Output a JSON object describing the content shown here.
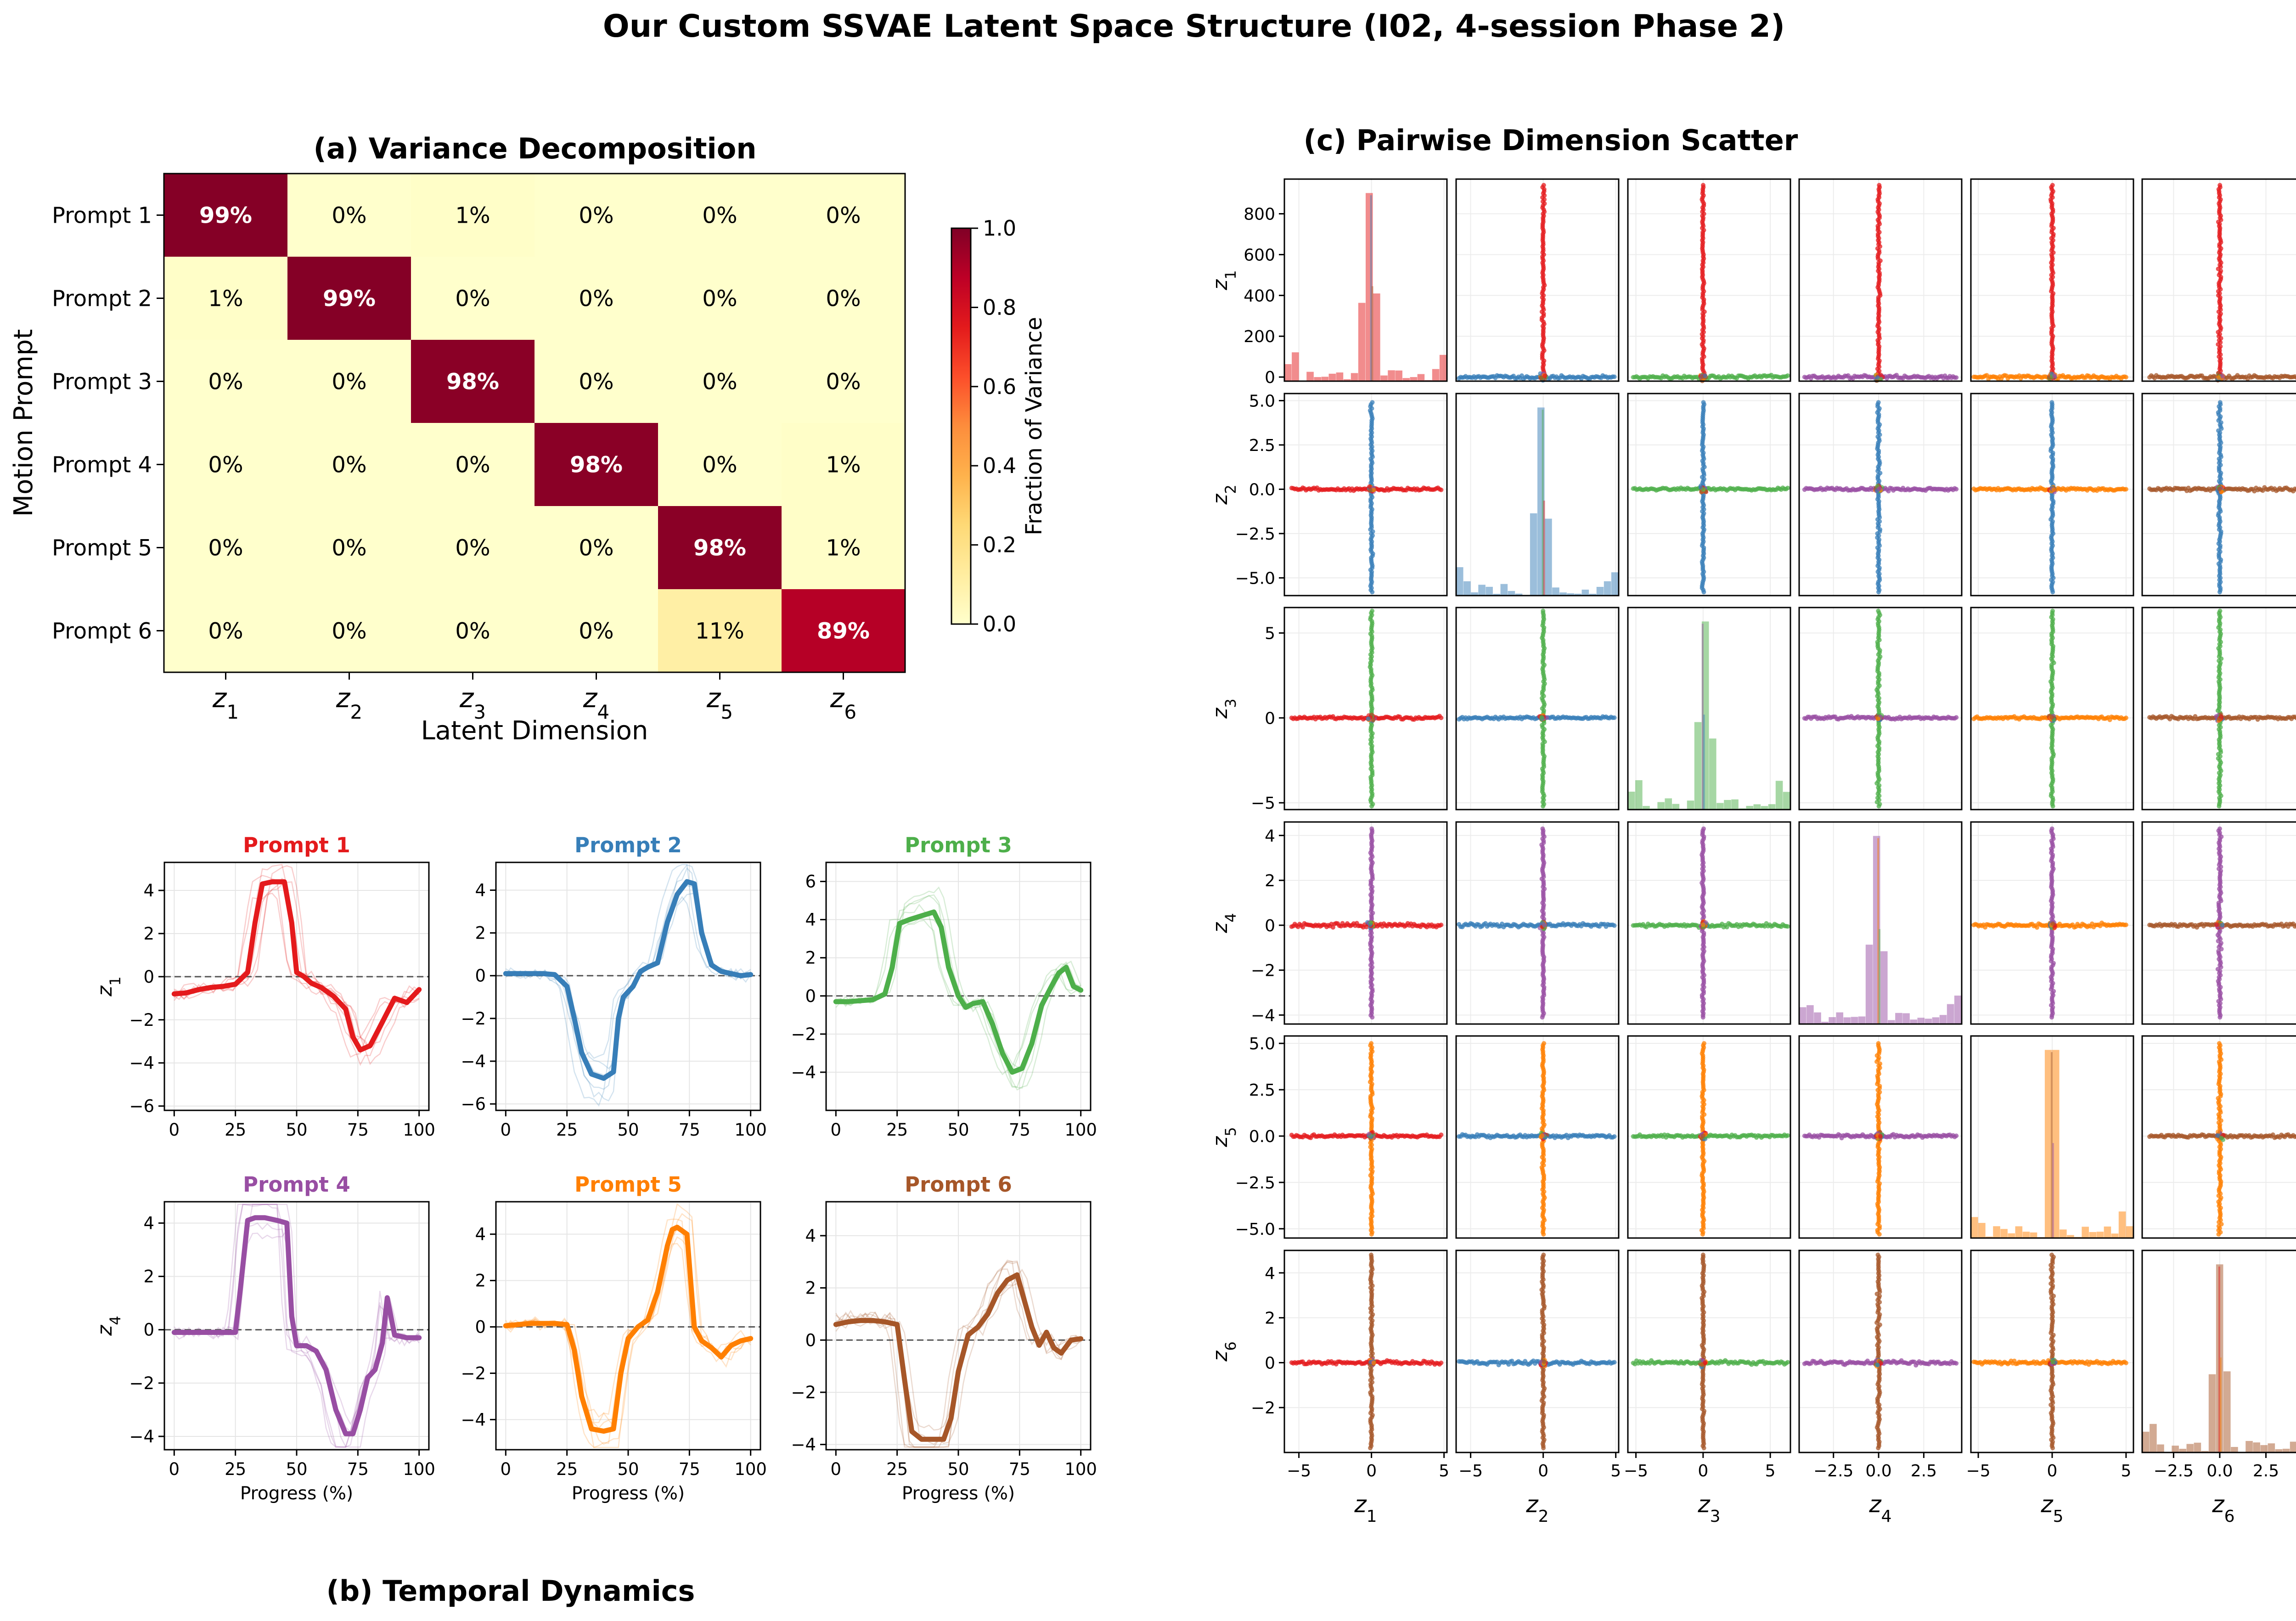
{
  "figure": {
    "title": "Our Custom SSVAE Latent Space Structure (I02, 4-session Phase 2)",
    "colors": [
      "#e41a1c",
      "#377eb8",
      "#4daf4a",
      "#984ea3",
      "#ff7f00",
      "#a65628"
    ]
  },
  "chart_data": [
    {
      "type": "heatmap",
      "title": "(a) Variance Decomposition",
      "xlabel": "Latent Dimension",
      "ylabel": "Motion Prompt",
      "row_labels": [
        "Prompt 1",
        "Prompt 2",
        "Prompt 3",
        "Prompt 4",
        "Prompt 5",
        "Prompt 6"
      ],
      "col_labels": [
        "z1",
        "z2",
        "z3",
        "z4",
        "z5",
        "z6"
      ],
      "values": [
        [
          0.99,
          0.0,
          0.01,
          0.0,
          0.0,
          0.0
        ],
        [
          0.01,
          0.99,
          0.0,
          0.0,
          0.0,
          0.0
        ],
        [
          0.0,
          0.0,
          0.98,
          0.0,
          0.0,
          0.0
        ],
        [
          0.0,
          0.0,
          0.0,
          0.98,
          0.0,
          0.01
        ],
        [
          0.0,
          0.0,
          0.0,
          0.0,
          0.98,
          0.01
        ],
        [
          0.0,
          0.0,
          0.0,
          0.0,
          0.11,
          0.89
        ]
      ],
      "cell_labels": [
        [
          "99%",
          "0%",
          "1%",
          "0%",
          "0%",
          "0%"
        ],
        [
          "1%",
          "99%",
          "0%",
          "0%",
          "0%",
          "0%"
        ],
        [
          "0%",
          "0%",
          "98%",
          "0%",
          "0%",
          "0%"
        ],
        [
          "0%",
          "0%",
          "0%",
          "98%",
          "0%",
          "1%"
        ],
        [
          "0%",
          "0%",
          "0%",
          "0%",
          "98%",
          "1%"
        ],
        [
          "0%",
          "0%",
          "0%",
          "0%",
          "11%",
          "89%"
        ]
      ],
      "colorbar": {
        "label": "Fraction of Variance",
        "range": [
          0,
          1
        ],
        "ticks": [
          "0.0",
          "0.2",
          "0.4",
          "0.6",
          "0.8",
          "1.0"
        ],
        "colormap": "YlOrRd"
      }
    },
    {
      "type": "line",
      "title": "(b) Temporal Dynamics",
      "xlabel": "Progress (%)",
      "panels": [
        {
          "name": "Prompt 1",
          "ylabel": "z1",
          "color": "#e41a1c",
          "ylim": [
            -6.2,
            5.3
          ],
          "yticks": [
            "4",
            "2",
            "0",
            "−2",
            "−4",
            "−6"
          ],
          "yticks_values": [
            4,
            2,
            0,
            -2,
            -4,
            -6
          ],
          "xticks": [
            "0",
            "25",
            "50",
            "75",
            "100"
          ],
          "mean": {
            "x": [
              0,
              5,
              10,
              15,
              20,
              25,
              30,
              33,
              36,
              40,
              45,
              48,
              50,
              53,
              56,
              60,
              65,
              70,
              73,
              76,
              80,
              85,
              90,
              95,
              100
            ],
            "y": [
              -0.8,
              -0.75,
              -0.6,
              -0.5,
              -0.45,
              -0.35,
              0.2,
              2.5,
              4.3,
              4.4,
              4.4,
              2.5,
              0.2,
              0.0,
              -0.3,
              -0.5,
              -0.9,
              -1.5,
              -2.8,
              -3.4,
              -3.2,
              -2.1,
              -1.0,
              -1.2,
              -0.6
            ]
          }
        },
        {
          "name": "Prompt 2",
          "ylabel": "",
          "color": "#377eb8",
          "ylim": [
            -6.3,
            5.3
          ],
          "yticks": [
            "4",
            "2",
            "0",
            "−2",
            "−4",
            "−6"
          ],
          "yticks_values": [
            4,
            2,
            0,
            -2,
            -4,
            -6
          ],
          "xticks": [
            "0",
            "25",
            "50",
            "75",
            "100"
          ],
          "mean": {
            "x": [
              0,
              5,
              10,
              15,
              20,
              25,
              28,
              31,
              35,
              40,
              44,
              46,
              48,
              52,
              55,
              58,
              62,
              66,
              70,
              74,
              77,
              80,
              84,
              88,
              92,
              96,
              100
            ],
            "y": [
              0.1,
              0.1,
              0.1,
              0.1,
              0.05,
              -0.5,
              -2.0,
              -3.6,
              -4.6,
              -4.8,
              -4.5,
              -2.0,
              -1.0,
              -0.5,
              0.2,
              0.4,
              0.6,
              2.5,
              3.8,
              4.4,
              4.3,
              2.0,
              0.5,
              0.2,
              0.1,
              0.0,
              0.05
            ]
          }
        },
        {
          "name": "Prompt 3",
          "ylabel": "",
          "color": "#4daf4a",
          "ylim": [
            -6.0,
            7.0
          ],
          "yticks": [
            "6",
            "4",
            "2",
            "0",
            "−2",
            "−4"
          ],
          "yticks_values": [
            6,
            4,
            2,
            0,
            -2,
            -4
          ],
          "xticks": [
            "0",
            "25",
            "50",
            "75",
            "100"
          ],
          "mean": {
            "x": [
              0,
              5,
              10,
              15,
              20,
              23,
              26,
              30,
              35,
              40,
              43,
              46,
              50,
              53,
              56,
              60,
              64,
              68,
              72,
              76,
              80,
              84,
              88,
              91,
              94,
              97,
              100
            ],
            "y": [
              -0.3,
              -0.3,
              -0.25,
              -0.2,
              0.1,
              1.5,
              3.8,
              4.0,
              4.2,
              4.4,
              3.6,
              1.5,
              0.0,
              -0.6,
              -0.4,
              -0.3,
              -1.5,
              -3.0,
              -4.0,
              -3.8,
              -2.5,
              -0.5,
              0.5,
              1.2,
              1.5,
              0.5,
              0.3
            ]
          }
        },
        {
          "name": "Prompt 4",
          "ylabel": "z4",
          "color": "#984ea3",
          "ylim": [
            -4.5,
            4.8
          ],
          "yticks": [
            "4",
            "2",
            "0",
            "−2",
            "−4"
          ],
          "yticks_values": [
            4,
            2,
            0,
            -2,
            -4
          ],
          "xticks": [
            "0",
            "25",
            "50",
            "75",
            "100"
          ],
          "mean": {
            "x": [
              0,
              5,
              10,
              15,
              20,
              25,
              27,
              30,
              33,
              37,
              42,
              46,
              48,
              50,
              54,
              58,
              62,
              66,
              70,
              73,
              76,
              79,
              82,
              85,
              87,
              90,
              95,
              100
            ],
            "y": [
              -0.1,
              -0.1,
              -0.1,
              -0.1,
              -0.1,
              -0.1,
              1.5,
              4.1,
              4.2,
              4.2,
              4.1,
              4.0,
              0.5,
              -0.6,
              -0.6,
              -0.8,
              -1.5,
              -3.0,
              -3.9,
              -3.9,
              -3.0,
              -1.8,
              -1.5,
              -0.5,
              1.2,
              -0.2,
              -0.3,
              -0.3
            ]
          }
        },
        {
          "name": "Prompt 5",
          "ylabel": "",
          "color": "#ff7f00",
          "ylim": [
            -5.3,
            5.4
          ],
          "yticks": [
            "4",
            "2",
            "0",
            "−2",
            "−4"
          ],
          "yticks_values": [
            4,
            2,
            0,
            -2,
            -4
          ],
          "xticks": [
            "0",
            "25",
            "50",
            "75",
            "100"
          ],
          "mean": {
            "x": [
              0,
              5,
              10,
              15,
              20,
              25,
              28,
              31,
              35,
              40,
              44,
              47,
              50,
              54,
              58,
              62,
              66,
              68,
              70,
              74,
              77,
              80,
              84,
              88,
              92,
              96,
              100
            ],
            "y": [
              0.05,
              0.1,
              0.15,
              0.15,
              0.15,
              0.1,
              -1.0,
              -3.0,
              -4.4,
              -4.5,
              -4.4,
              -2.0,
              -0.5,
              0.0,
              0.3,
              1.5,
              3.5,
              4.2,
              4.3,
              4.0,
              0.0,
              -0.6,
              -0.9,
              -1.3,
              -0.8,
              -0.6,
              -0.5
            ]
          }
        },
        {
          "name": "Prompt 6",
          "ylabel": "",
          "color": "#a65628",
          "ylim": [
            -4.2,
            5.3
          ],
          "yticks": [
            "4",
            "2",
            "0",
            "−2",
            "−4"
          ],
          "yticks_values": [
            4,
            2,
            0,
            -2,
            -4
          ],
          "xticks": [
            "0",
            "25",
            "50",
            "75",
            "100"
          ],
          "mean": {
            "x": [
              0,
              5,
              10,
              15,
              20,
              25,
              28,
              31,
              35,
              40,
              44,
              47,
              50,
              54,
              58,
              62,
              66,
              70,
              74,
              77,
              80,
              83,
              86,
              89,
              92,
              96,
              100
            ],
            "y": [
              0.6,
              0.7,
              0.75,
              0.75,
              0.7,
              0.6,
              -1.5,
              -3.5,
              -3.8,
              -3.8,
              -3.8,
              -3.0,
              -1.2,
              0.2,
              0.5,
              1.0,
              1.8,
              2.3,
              2.5,
              1.5,
              0.5,
              -0.2,
              0.3,
              -0.3,
              -0.5,
              0.0,
              0.05
            ]
          }
        }
      ]
    },
    {
      "type": "scatter",
      "title": "(c) Pairwise Dimension Scatter",
      "dims": [
        "z1",
        "z2",
        "z3",
        "z4",
        "z5",
        "z6"
      ],
      "row_ranges": [
        [
          -20,
          970
        ],
        [
          -6.0,
          5.4
        ],
        [
          -5.4,
          6.5
        ],
        [
          -4.4,
          4.6
        ],
        [
          -5.5,
          5.4
        ],
        [
          -4.0,
          5.0
        ]
      ],
      "col_ranges": [
        [
          -6.0,
          5.2
        ],
        [
          -6.0,
          5.2
        ],
        [
          -5.6,
          6.5
        ],
        [
          -4.4,
          4.6
        ],
        [
          -5.5,
          5.5
        ],
        [
          -4.2,
          4.6
        ]
      ],
      "row_yticks": [
        {
          "labels": [
            "0",
            "200",
            "400",
            "600",
            "800"
          ],
          "values": [
            0,
            200,
            400,
            600,
            800
          ]
        },
        {
          "labels": [
            "−5.0",
            "−2.5",
            "0.0",
            "2.5",
            "5.0"
          ],
          "values": [
            -5,
            -2.5,
            0,
            2.5,
            5
          ]
        },
        {
          "labels": [
            "−5",
            "0",
            "5"
          ],
          "values": [
            -5,
            0,
            5
          ]
        },
        {
          "labels": [
            "−4",
            "−2",
            "0",
            "2",
            "4"
          ],
          "values": [
            -4,
            -2,
            0,
            2,
            4
          ]
        },
        {
          "labels": [
            "−5.0",
            "−2.5",
            "0.0",
            "2.5",
            "5.0"
          ],
          "values": [
            -5,
            -2.5,
            0,
            2.5,
            5
          ]
        },
        {
          "labels": [
            "−2",
            "0",
            "2",
            "4"
          ],
          "values": [
            -2,
            0,
            2,
            4
          ]
        }
      ],
      "col_xticks": [
        {
          "labels": [
            "−5",
            "0",
            "5"
          ],
          "values": [
            -5,
            0,
            5
          ]
        },
        {
          "labels": [
            "−5",
            "0",
            "5"
          ],
          "values": [
            -5,
            0,
            5
          ]
        },
        {
          "labels": [
            "−5",
            "0",
            "5"
          ],
          "values": [
            -5,
            0,
            5
          ]
        },
        {
          "labels": [
            "−2.5",
            "0.0",
            "2.5"
          ],
          "values": [
            -2.5,
            0,
            2.5
          ]
        },
        {
          "labels": [
            "−5",
            "0",
            "5"
          ],
          "values": [
            -5,
            0,
            5
          ]
        },
        {
          "labels": [
            "−2.5",
            "0.0",
            "2.5"
          ],
          "values": [
            -2.5,
            0,
            2.5
          ]
        }
      ]
    }
  ]
}
